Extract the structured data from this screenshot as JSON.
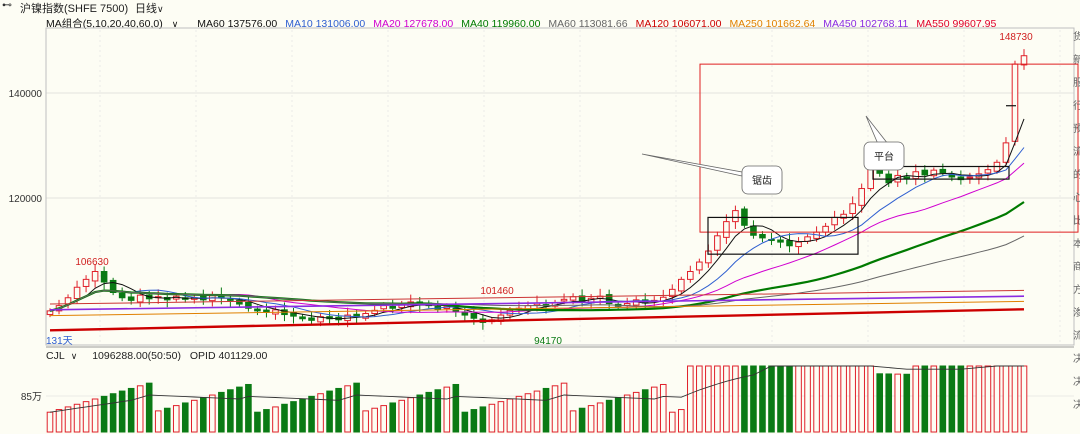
{
  "header": {
    "instrument_label": "沪镍指数(SHFE 7500)",
    "period_label": "日线"
  },
  "ma_legend": {
    "group_label": "MA组合(5,10,20,40,60,0)",
    "items": [
      {
        "label": "MA60 137576.00",
        "color": "#111111"
      },
      {
        "label": "MA10 131006.00",
        "color": "#2f5fd0"
      },
      {
        "label": "MA20 127678.00",
        "color": "#d000d0"
      },
      {
        "label": "MA40 119960.00",
        "color": "#007a00"
      },
      {
        "label": "MA60 113081.66",
        "color": "#666666"
      },
      {
        "label": "MA120 106071.00",
        "color": "#cc0000"
      },
      {
        "label": "MA250 101662.64",
        "color": "#e08000"
      },
      {
        "label": "MA450 102768.11",
        "color": "#8a2be2"
      },
      {
        "label": "MA550 99607.95",
        "color": "#e0002a"
      }
    ]
  },
  "volume_legend": {
    "indicator_label": "CJL",
    "values_label": "1096288.00(50:50)",
    "opid_label": "OPID 401129.00"
  },
  "price_axis": {
    "ticks": [
      "140000",
      "120000"
    ]
  },
  "volume_axis": {
    "ticks": [
      "85万"
    ]
  },
  "annotations": {
    "high_label": "148730",
    "left_high_label": "106630",
    "mid_high_label": "101460",
    "low_label": "94170",
    "days_label": "131天",
    "callout_saw": "锯齿",
    "callout_platform": "平台"
  },
  "right_side_glyphs": [
    "货",
    "新",
    "服",
    "行",
    "预",
    "流",
    "的",
    "心",
    "比",
    "本",
    "商",
    "方",
    "渗",
    "流",
    "决",
    "决",
    "决"
  ],
  "colors": {
    "up": "#e0202a",
    "down": "#0a7a14",
    "background": "#fdfdf4",
    "grid": "#c8c8c8"
  },
  "chart_data": {
    "type": "candlestick",
    "ylabel": "",
    "ylim": [
      92000,
      152000
    ],
    "y_ticks": [
      120000,
      140000
    ],
    "annotated_points": {
      "high": 148730,
      "left_high": 106630,
      "mid_high": 101460,
      "low": 94170
    },
    "closes": [
      98500,
      99500,
      101000,
      103000,
      104500,
      106000,
      104000,
      102000,
      101000,
      100500,
      101500,
      100800,
      101200,
      100600,
      101300,
      100700,
      101000,
      100600,
      101400,
      101000,
      100500,
      99800,
      99000,
      98500,
      98200,
      98700,
      97800,
      97500,
      97000,
      96700,
      97400,
      97000,
      96800,
      97700,
      97400,
      98000,
      98600,
      99500,
      99000,
      99600,
      100200,
      99700,
      99500,
      98800,
      99300,
      98300,
      97700,
      97100,
      96300,
      96800,
      97700,
      98600,
      99000,
      99500,
      100000,
      99400,
      100100,
      100700,
      101200,
      100300,
      100900,
      101300,
      99900,
      99400,
      99900,
      100600,
      100000,
      100500,
      101100,
      102600,
      104500,
      106000,
      107800,
      109900,
      112800,
      115500,
      117600,
      114800,
      112900,
      112400,
      112000,
      111600,
      110900,
      111600,
      112600,
      113500,
      114600,
      116300,
      116900,
      118900,
      121800,
      125800,
      124700,
      122900,
      124300,
      123700,
      125000,
      124400,
      125300,
      124800,
      124000,
      123500,
      124000,
      124600,
      125400,
      126800,
      130500,
      145500,
      147100
    ]
  }
}
